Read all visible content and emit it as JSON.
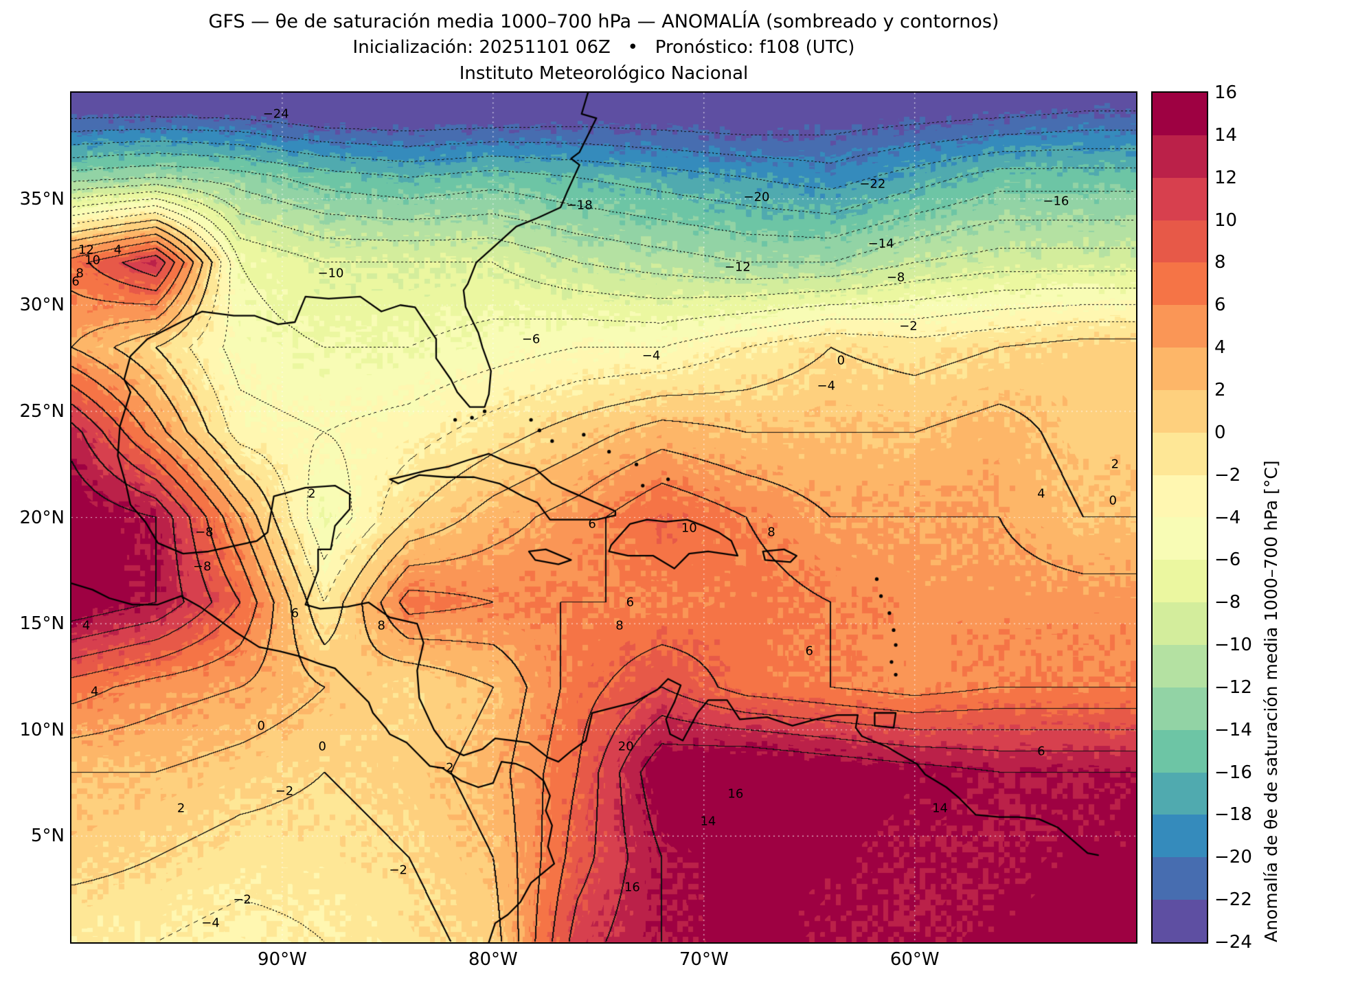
{
  "title": {
    "line1": "GFS — θe de saturación media 1000–700 hPa — ANOMALÍA (sombreado y contornos)",
    "line2": "Inicialización: 20251101 06Z   •   Pronóstico: f108 (UTC)",
    "line3": "Instituto Meteorológico Nacional"
  },
  "axes": {
    "lon_range": [
      -100,
      -49.5
    ],
    "lat_range": [
      0,
      40
    ],
    "x_ticks": [
      {
        "label": "90°W",
        "lon": -90
      },
      {
        "label": "80°W",
        "lon": -80
      },
      {
        "label": "70°W",
        "lon": -70
      },
      {
        "label": "60°W",
        "lon": -60
      }
    ],
    "y_ticks": [
      {
        "label": "35°N",
        "lat": 35
      },
      {
        "label": "30°N",
        "lat": 30
      },
      {
        "label": "25°N",
        "lat": 25
      },
      {
        "label": "20°N",
        "lat": 20
      },
      {
        "label": "15°N",
        "lat": 15
      },
      {
        "label": "10°N",
        "lat": 10
      },
      {
        "label": "5°N",
        "lat": 5
      }
    ]
  },
  "colorbar": {
    "label": "Anomalía de θe de saturación media 1000–700 hPa [°C]",
    "min": -24,
    "max": 16,
    "step": 2,
    "tick_labels": [
      "16",
      "14",
      "12",
      "10",
      "8",
      "6",
      "4",
      "2",
      "0",
      "−2",
      "−4",
      "−6",
      "−8",
      "−10",
      "−12",
      "−14",
      "−16",
      "−18",
      "−20",
      "−22",
      "−24"
    ],
    "colors": [
      "#5e4fa2",
      "#476db0",
      "#358bbc",
      "#50aaaf",
      "#6dc5a5",
      "#92d3a5",
      "#b4e1a2",
      "#d3ed9c",
      "#ebf7a0",
      "#f8fcb5",
      "#fff7b1",
      "#fee796",
      "#fed07e",
      "#fdb668",
      "#fa9656",
      "#f57446",
      "#e75948",
      "#d7404e",
      "#bb2149",
      "#9e0142"
    ]
  },
  "chart_data": {
    "type": "heatmap",
    "units": "°C",
    "title": "GFS anomalía de θe de saturación media 1000–700 hPa, f108, init 20251101 06Z",
    "contour_interval": 2,
    "negative_contours_dotted": true,
    "lats": [
      40,
      36,
      32,
      28,
      24,
      20,
      16,
      12,
      8,
      4,
      0
    ],
    "lons": [
      -100,
      -96,
      -92,
      -88,
      -84,
      -80,
      -76,
      -72,
      -68,
      -64,
      -60,
      -56,
      -52
    ],
    "values": [
      [
        -26,
        -26,
        -26,
        -27,
        -27,
        -27,
        -26,
        -26,
        -26,
        -25,
        -25,
        -25,
        -24
      ],
      [
        -13,
        -12,
        -13,
        -15,
        -16,
        -15,
        -16,
        -17,
        -18,
        -19,
        -17,
        -15,
        -15
      ],
      [
        7,
        12,
        -6,
        -8,
        -8,
        -8,
        -10,
        -11,
        -12,
        -12,
        -10,
        -9,
        -9
      ],
      [
        4,
        0,
        -5,
        -6,
        -6,
        -5,
        -4,
        -4,
        -2,
        0,
        -1,
        0,
        1
      ],
      [
        13,
        5,
        -3,
        -4,
        -3,
        -1,
        1,
        3,
        2,
        2,
        2,
        3,
        1
      ],
      [
        16,
        14,
        4,
        -6,
        0,
        3,
        5,
        8,
        6,
        4,
        4,
        4,
        2
      ],
      [
        16,
        14,
        8,
        -2,
        7,
        6,
        6,
        6,
        7,
        6,
        5,
        5,
        5
      ],
      [
        7,
        5,
        4,
        2,
        0,
        2,
        7,
        10,
        7,
        6,
        5,
        6,
        6
      ],
      [
        2,
        2,
        1,
        0,
        1,
        3,
        8,
        16,
        17,
        16,
        15,
        14,
        14
      ],
      [
        1,
        0,
        -1,
        -1,
        0,
        2,
        9,
        14,
        16,
        15,
        14,
        14,
        15
      ],
      [
        -2,
        -2,
        -3,
        -2,
        -1,
        1,
        11,
        14,
        15,
        14,
        14,
        15,
        16
      ]
    ],
    "contour_labels": [
      {
        "v": "−24",
        "lon": -90.3,
        "lat": 39.0
      },
      {
        "v": "−22",
        "lon": -62.0,
        "lat": 35.7
      },
      {
        "v": "−20",
        "lon": -67.5,
        "lat": 35.1
      },
      {
        "v": "−18",
        "lon": -75.9,
        "lat": 34.7
      },
      {
        "v": "−16",
        "lon": -53.3,
        "lat": 34.9
      },
      {
        "v": "−14",
        "lon": -61.6,
        "lat": 32.9
      },
      {
        "v": "−12",
        "lon": -68.4,
        "lat": 31.8
      },
      {
        "v": "−10",
        "lon": -87.7,
        "lat": 31.5
      },
      {
        "v": "−8",
        "lon": -60.9,
        "lat": 31.3
      },
      {
        "v": "−6",
        "lon": -78.2,
        "lat": 28.4
      },
      {
        "v": "−4",
        "lon": -72.5,
        "lat": 27.6
      },
      {
        "v": "−2",
        "lon": -60.3,
        "lat": 29.0
      },
      {
        "v": "0",
        "lon": -63.5,
        "lat": 27.4
      },
      {
        "v": "−4",
        "lon": -64.2,
        "lat": 26.2
      },
      {
        "v": "12",
        "lon": -99.3,
        "lat": 32.6
      },
      {
        "v": "10",
        "lon": -99.0,
        "lat": 32.1
      },
      {
        "v": "8",
        "lon": -99.6,
        "lat": 31.5
      },
      {
        "v": "6",
        "lon": -99.8,
        "lat": 31.1
      },
      {
        "v": "4",
        "lon": -97.8,
        "lat": 32.6
      },
      {
        "v": "−8",
        "lon": -93.7,
        "lat": 19.3
      },
      {
        "v": "−8",
        "lon": -93.8,
        "lat": 17.7
      },
      {
        "v": "2",
        "lon": -88.6,
        "lat": 21.1
      },
      {
        "v": "6",
        "lon": -89.4,
        "lat": 15.5
      },
      {
        "v": "8",
        "lon": -85.3,
        "lat": 14.9
      },
      {
        "v": "6",
        "lon": -75.3,
        "lat": 19.7
      },
      {
        "v": "10",
        "lon": -70.7,
        "lat": 19.5
      },
      {
        "v": "8",
        "lon": -66.8,
        "lat": 19.3
      },
      {
        "v": "8",
        "lon": -74.0,
        "lat": 14.9
      },
      {
        "v": "6",
        "lon": -73.5,
        "lat": 16.0
      },
      {
        "v": "6",
        "lon": -65.0,
        "lat": 13.7
      },
      {
        "v": "20",
        "lon": -73.7,
        "lat": 9.2
      },
      {
        "v": "16",
        "lon": -68.5,
        "lat": 7.0
      },
      {
        "v": "14",
        "lon": -69.8,
        "lat": 5.7
      },
      {
        "v": "14",
        "lon": -58.8,
        "lat": 6.3
      },
      {
        "v": "16",
        "lon": -73.4,
        "lat": 2.6
      },
      {
        "v": "0",
        "lon": -88.1,
        "lat": 9.2
      },
      {
        "v": "−2",
        "lon": -89.9,
        "lat": 7.1
      },
      {
        "v": "2",
        "lon": -94.8,
        "lat": 6.3
      },
      {
        "v": "−2",
        "lon": -84.5,
        "lat": 3.4
      },
      {
        "v": "−2",
        "lon": -91.9,
        "lat": 2.0
      },
      {
        "v": "−4",
        "lon": -93.4,
        "lat": 0.9
      },
      {
        "v": "4",
        "lon": -99.3,
        "lat": 14.9
      },
      {
        "v": "4",
        "lon": -98.9,
        "lat": 11.8
      },
      {
        "v": "2",
        "lon": -50.5,
        "lat": 22.5
      },
      {
        "v": "0",
        "lon": -50.6,
        "lat": 20.8
      },
      {
        "v": "4",
        "lon": -54.0,
        "lat": 21.1
      },
      {
        "v": "6",
        "lon": -54.0,
        "lat": 9.0
      },
      {
        "v": "0",
        "lon": -91.0,
        "lat": 10.2
      },
      {
        "v": "−2",
        "lon": -82.3,
        "lat": 8.2
      }
    ]
  }
}
